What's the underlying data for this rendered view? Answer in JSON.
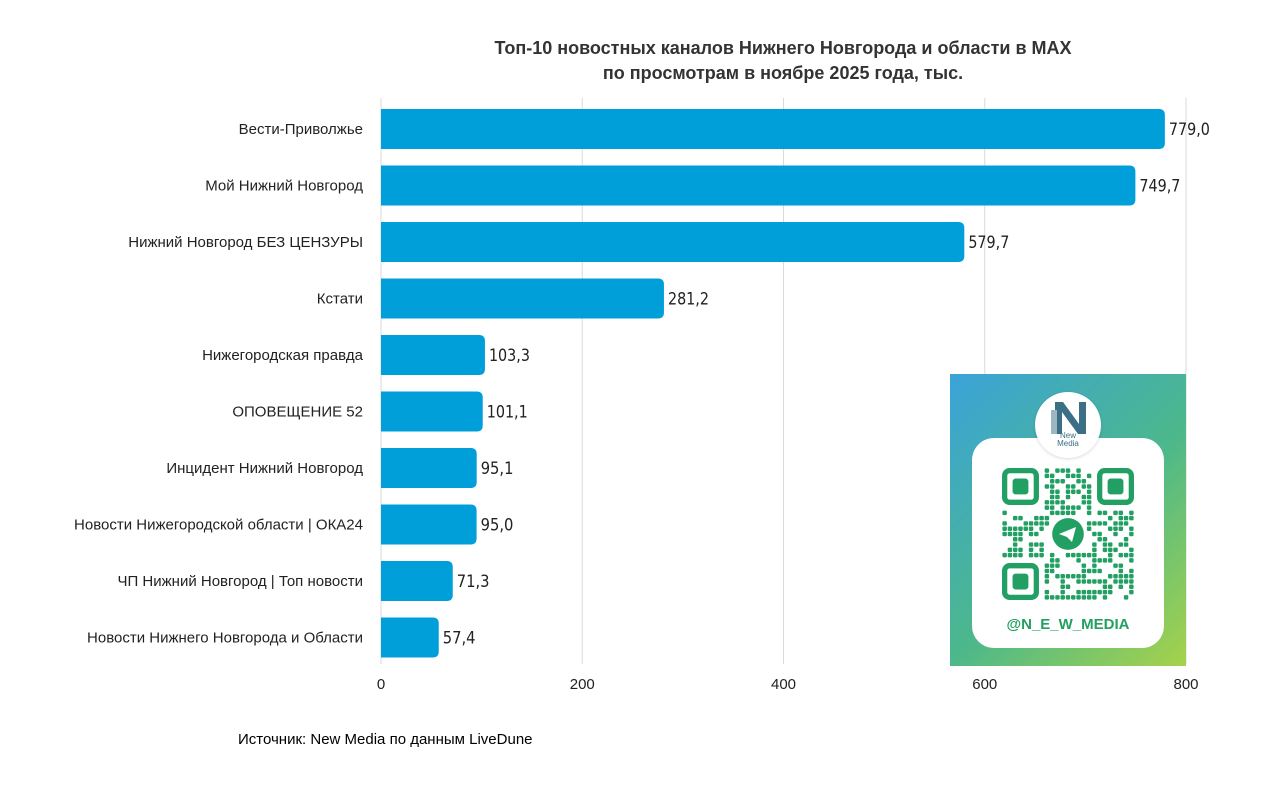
{
  "chart_data": {
    "type": "bar",
    "orientation": "horizontal",
    "title": [
      "Топ-10 новостных каналов Нижнего Новгорода и области в MAX",
      "по просмотрам в ноябре 2025 года, тыс."
    ],
    "categories": [
      "Вести-Приволжье",
      "Мой Нижний Новгород",
      "Нижний Новгород БЕЗ ЦЕНЗУРЫ",
      "Кстати",
      "Нижегородская правда",
      "ОПОВЕЩЕНИЕ 52",
      "Инцидент Нижний Новгород",
      "Новости Нижегородской области | ОКА24",
      "ЧП Нижний Новгород | Топ новости",
      "Новости Нижнего Новгорода и Области"
    ],
    "values": [
      779.0,
      749.7,
      579.7,
      281.2,
      103.3,
      101.1,
      95.1,
      95.0,
      71.3,
      57.4
    ],
    "value_labels": [
      "779,0",
      "749,7",
      "579,7",
      "281,2",
      "103,3",
      "101,1",
      "95,1",
      "95,0",
      "71,3",
      "57,4"
    ],
    "xlim": [
      0,
      800
    ],
    "xticks": [
      0,
      200,
      400,
      600,
      800
    ],
    "grid": true,
    "bar_color": "#009fd9"
  },
  "source": "Источник: New Media по данным LiveDune",
  "promo": {
    "logo_text": [
      "New",
      "Media"
    ],
    "handle": "@N_E_W_MEDIA",
    "qr_color": "#22a063"
  }
}
